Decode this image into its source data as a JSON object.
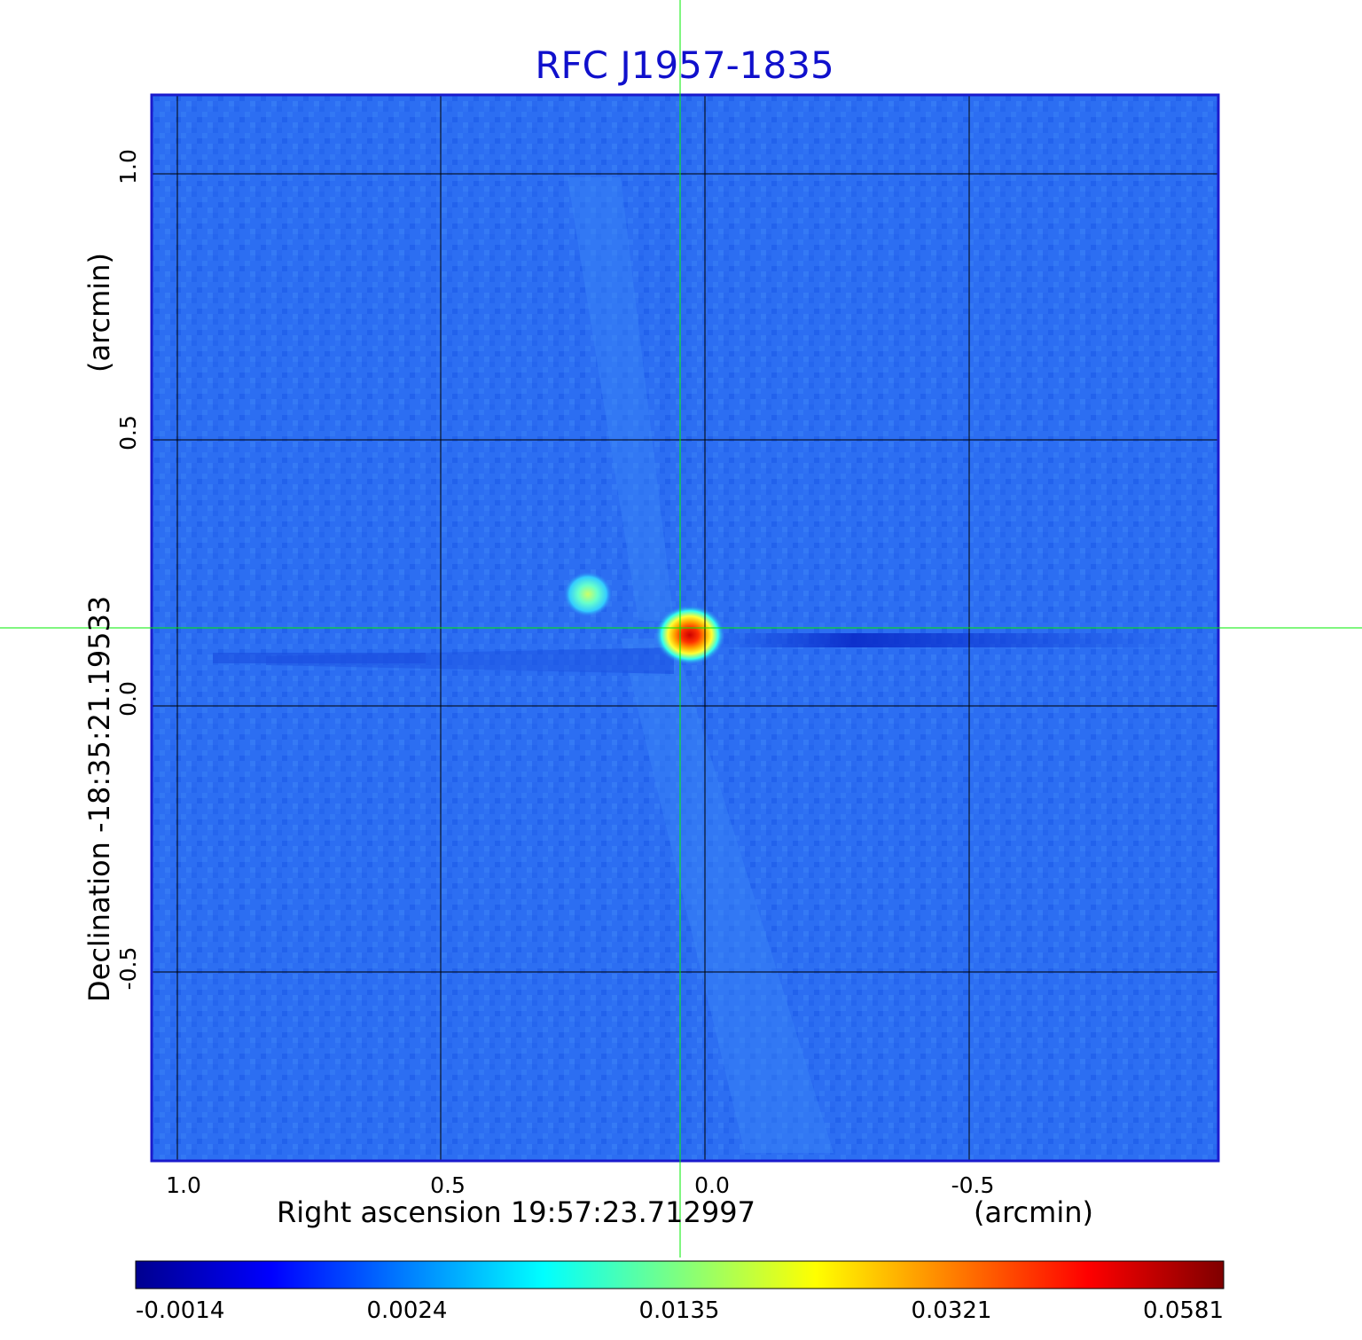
{
  "title": "RFC J1957-1835",
  "colors": {
    "title": "#1010cc",
    "frame": "#1a1acc",
    "grid": "#000000",
    "crosshair": "#00ee00",
    "background_field": "#2a6cf0"
  },
  "image": {
    "description_colormap": "jet",
    "features": [
      {
        "name": "core",
        "ra_offset_arcmin": 0.03,
        "dec_offset_arcmin": 0.12,
        "intensity": "peak"
      },
      {
        "name": "secondary-component",
        "ra_offset_arcmin": 0.22,
        "dec_offset_arcmin": 0.2,
        "intensity": "moderate"
      }
    ]
  },
  "x_axis": {
    "label": "Right ascension  19:57:23.712997",
    "unit_label": "(arcmin)",
    "ticks": [
      "1.0",
      "0.5",
      "0.0",
      "-0.5"
    ],
    "tick_values": [
      1.0,
      0.5,
      0.0,
      -0.5
    ]
  },
  "y_axis": {
    "label": "Declination  -18:35:21.19533",
    "unit_label": "(arcmin)",
    "ticks": [
      "1.0",
      "0.5",
      "0.0",
      "-0.5"
    ],
    "tick_values": [
      1.0,
      0.5,
      0.0,
      -0.5
    ]
  },
  "colorbar": {
    "colormap": "jet",
    "labels": [
      "-0.0014",
      "0.0024",
      "0.0135",
      "0.0321",
      "0.0581"
    ]
  },
  "crosshair": {
    "ra_offset_arcmin": 0.05,
    "dec_offset_arcmin": 0.15
  }
}
